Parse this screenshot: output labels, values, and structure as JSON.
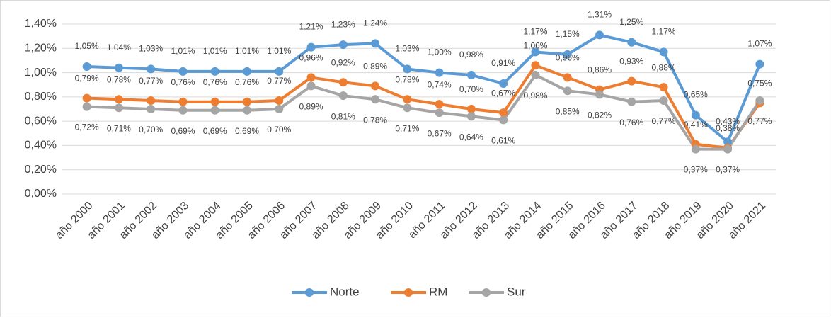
{
  "chart_data": {
    "type": "line",
    "categories": [
      "año 2000",
      "año 2001",
      "año 2002",
      "año 2003",
      "año 2004",
      "año 2005",
      "año 2006",
      "año 2007",
      "año 2008",
      "año 2009",
      "año 2010",
      "año 2011",
      "año 2012",
      "año 2013",
      "año 2014",
      "año 2015",
      "año 2016",
      "año 2017",
      "año 2018",
      "año 2019",
      "año 2020",
      "año 2021"
    ],
    "series": [
      {
        "name": "Norte",
        "color": "#5b9bd5",
        "values": [
          1.05,
          1.04,
          1.03,
          1.01,
          1.01,
          1.01,
          1.01,
          1.21,
          1.23,
          1.24,
          1.03,
          1.0,
          0.98,
          0.91,
          1.17,
          1.15,
          1.31,
          1.25,
          1.17,
          0.65,
          0.43,
          1.07
        ],
        "value_labels": [
          "1,05%",
          "1,04%",
          "1,03%",
          "1,01%",
          "1,01%",
          "1,01%",
          "1,01%",
          "1,21%",
          "1,23%",
          "1,24%",
          "1,03%",
          "1,00%",
          "0,98%",
          "0,91%",
          "1,17%",
          "1,15%",
          "1,31%",
          "1,25%",
          "1,17%",
          "0,65%",
          "0,43%",
          "1,07%"
        ]
      },
      {
        "name": "RM",
        "color": "#ed7d31",
        "values": [
          0.79,
          0.78,
          0.77,
          0.76,
          0.76,
          0.76,
          0.77,
          0.96,
          0.92,
          0.89,
          0.78,
          0.74,
          0.7,
          0.67,
          1.06,
          0.96,
          0.86,
          0.93,
          0.88,
          0.41,
          0.38,
          0.75
        ],
        "value_labels": [
          "0,79%",
          "0,78%",
          "0,77%",
          "0,76%",
          "0,76%",
          "0,76%",
          "0,77%",
          "0,96%",
          "0,92%",
          "0,89%",
          "0,78%",
          "0,74%",
          "0,70%",
          "0,67%",
          "1,06%",
          "0,96%",
          "0,86%",
          "0,93%",
          "0,88%",
          "0,41%",
          "0,38%",
          "0,75%"
        ]
      },
      {
        "name": "Sur",
        "color": "#a5a5a5",
        "values": [
          0.72,
          0.71,
          0.7,
          0.69,
          0.69,
          0.69,
          0.7,
          0.89,
          0.81,
          0.78,
          0.71,
          0.67,
          0.64,
          0.61,
          0.98,
          0.85,
          0.82,
          0.76,
          0.77,
          0.37,
          0.37,
          0.77
        ],
        "value_labels": [
          "0,72%",
          "0,71%",
          "0,70%",
          "0,69%",
          "0,69%",
          "0,69%",
          "0,70%",
          "0,89%",
          "0,81%",
          "0,78%",
          "0,71%",
          "0,67%",
          "0,64%",
          "0,61%",
          "0,98%",
          "0,85%",
          "0,82%",
          "0,76%",
          "0,77%",
          "0,37%",
          "0,37%",
          "0,77%"
        ]
      }
    ],
    "ylim": [
      0,
      1.4
    ],
    "yticks": [
      {
        "value": 0,
        "label": "0,00%"
      },
      {
        "value": 0.2,
        "label": "0,20%"
      },
      {
        "value": 0.4,
        "label": "0,40%"
      },
      {
        "value": 0.6,
        "label": "0,60%"
      },
      {
        "value": 0.8,
        "label": "0,80%"
      },
      {
        "value": 1.0,
        "label": "1,00%"
      },
      {
        "value": 1.2,
        "label": "1,20%"
      },
      {
        "value": 1.4,
        "label": "1,40%"
      }
    ],
    "grid": true,
    "legend": "bottom"
  }
}
